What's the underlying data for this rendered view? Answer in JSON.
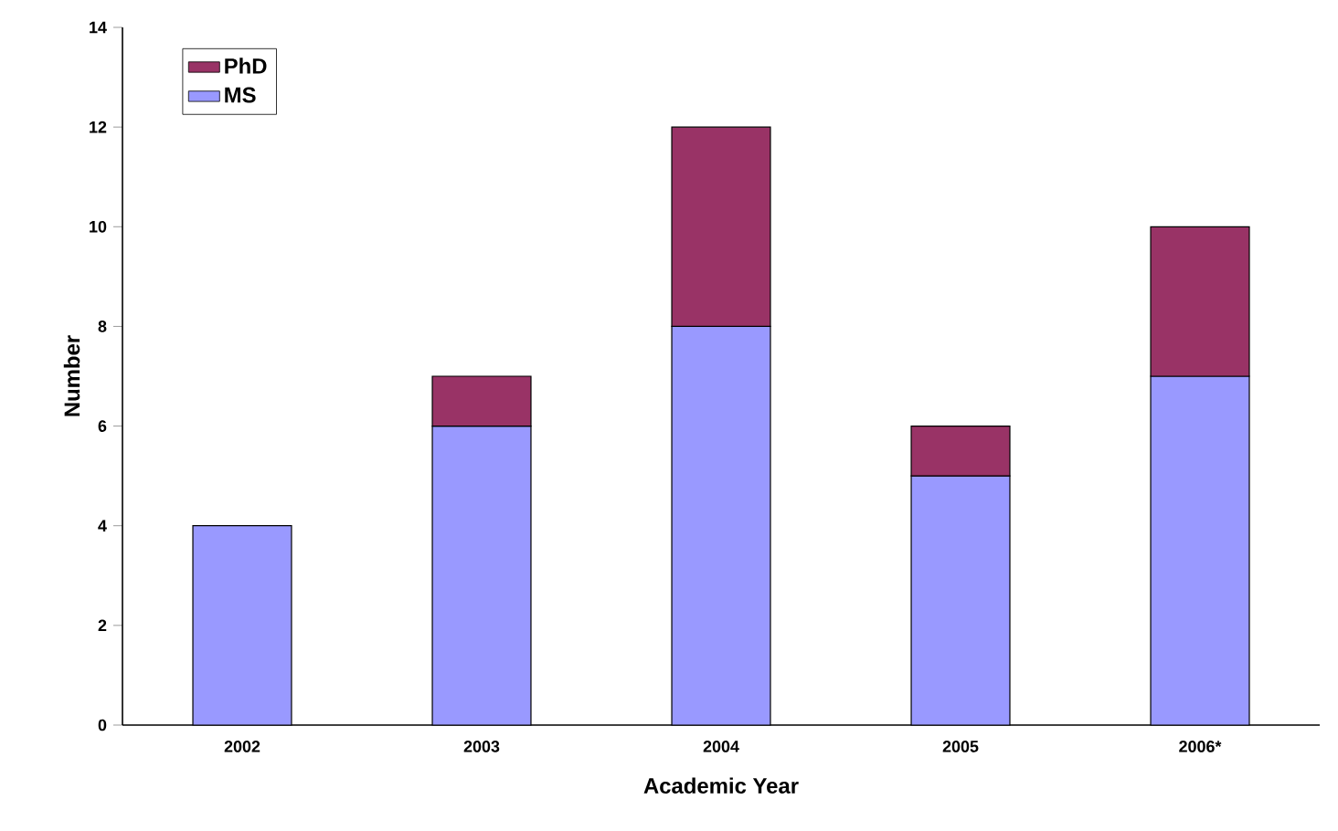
{
  "chart_data": {
    "type": "bar",
    "stacked": true,
    "xlabel": "Academic Year",
    "ylabel": "Number",
    "categories": [
      "2002",
      "2003",
      "2004",
      "2005",
      "2006*"
    ],
    "series": [
      {
        "name": "MS",
        "color": "#9999ff",
        "values": [
          4,
          6,
          8,
          5,
          7
        ]
      },
      {
        "name": "PhD",
        "color": "#993366",
        "values": [
          null,
          1,
          4,
          1,
          3
        ]
      }
    ],
    "ylim": [
      0,
      14
    ],
    "yticks": [
      0,
      2,
      4,
      6,
      8,
      10,
      12,
      14
    ],
    "legend": "top left",
    "grid": false
  }
}
